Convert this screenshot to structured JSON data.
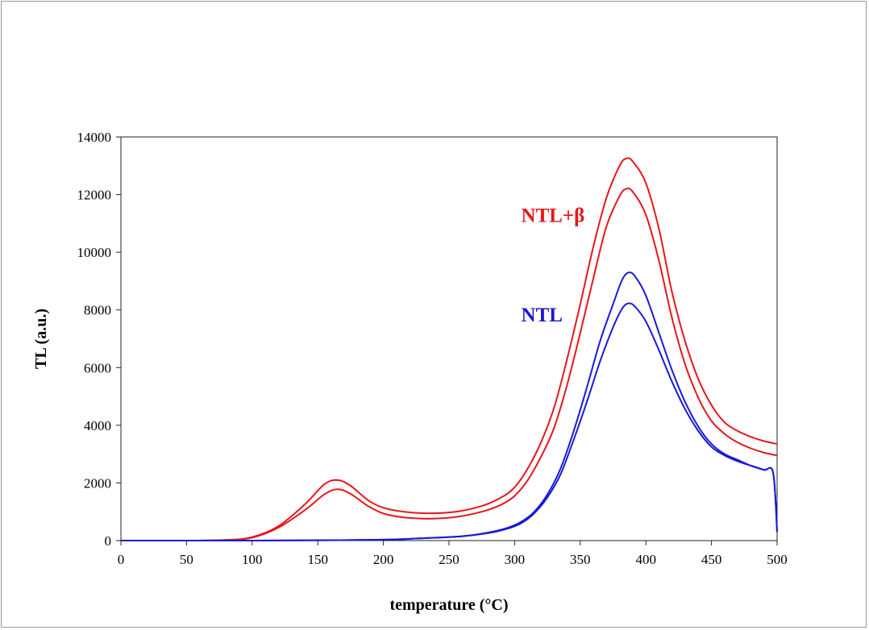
{
  "chart_data": {
    "type": "line",
    "xlabel": "temperature (°C)",
    "ylabel": "TL (a.u.)",
    "xlim": [
      0,
      500
    ],
    "ylim": [
      0,
      14000
    ],
    "x_ticks": [
      "0",
      "50",
      "100",
      "150",
      "200",
      "250",
      "300",
      "350",
      "400",
      "450",
      "500"
    ],
    "y_ticks": [
      "0",
      "2000",
      "4000",
      "6000",
      "8000",
      "10000",
      "12000",
      "14000"
    ],
    "grid": false,
    "annotations": [
      {
        "text": "NTL+β",
        "color": "#e8161c",
        "x": 305,
        "y": 11050
      },
      {
        "text": "NTL",
        "color": "#1a1ad6",
        "x": 305,
        "y": 7600
      }
    ],
    "series": [
      {
        "color": "#e8161c",
        "points": [
          [
            0,
            0
          ],
          [
            50,
            0
          ],
          [
            80,
            20
          ],
          [
            100,
            120
          ],
          [
            120,
            500
          ],
          [
            140,
            1250
          ],
          [
            155,
            1950
          ],
          [
            165,
            2100
          ],
          [
            175,
            1900
          ],
          [
            190,
            1350
          ],
          [
            205,
            1080
          ],
          [
            230,
            950
          ],
          [
            255,
            1000
          ],
          [
            275,
            1200
          ],
          [
            290,
            1500
          ],
          [
            300,
            1850
          ],
          [
            310,
            2500
          ],
          [
            320,
            3400
          ],
          [
            330,
            4600
          ],
          [
            340,
            6300
          ],
          [
            350,
            8200
          ],
          [
            360,
            10200
          ],
          [
            370,
            11900
          ],
          [
            380,
            13000
          ],
          [
            385,
            13250
          ],
          [
            390,
            13150
          ],
          [
            400,
            12400
          ],
          [
            410,
            10800
          ],
          [
            420,
            8600
          ],
          [
            430,
            6900
          ],
          [
            440,
            5600
          ],
          [
            450,
            4700
          ],
          [
            460,
            4100
          ],
          [
            470,
            3800
          ],
          [
            480,
            3600
          ],
          [
            490,
            3450
          ],
          [
            500,
            3350
          ]
        ]
      },
      {
        "color": "#e8161c",
        "points": [
          [
            0,
            0
          ],
          [
            50,
            0
          ],
          [
            80,
            20
          ],
          [
            100,
            100
          ],
          [
            120,
            450
          ],
          [
            140,
            1050
          ],
          [
            155,
            1600
          ],
          [
            165,
            1780
          ],
          [
            175,
            1620
          ],
          [
            190,
            1150
          ],
          [
            205,
            880
          ],
          [
            230,
            760
          ],
          [
            255,
            820
          ],
          [
            275,
            1000
          ],
          [
            290,
            1250
          ],
          [
            300,
            1550
          ],
          [
            310,
            2100
          ],
          [
            320,
            2900
          ],
          [
            330,
            3900
          ],
          [
            340,
            5400
          ],
          [
            350,
            7200
          ],
          [
            360,
            9100
          ],
          [
            370,
            10900
          ],
          [
            380,
            11950
          ],
          [
            385,
            12200
          ],
          [
            390,
            12100
          ],
          [
            400,
            11300
          ],
          [
            410,
            9700
          ],
          [
            420,
            7700
          ],
          [
            430,
            6100
          ],
          [
            440,
            4950
          ],
          [
            450,
            4150
          ],
          [
            460,
            3700
          ],
          [
            470,
            3400
          ],
          [
            480,
            3200
          ],
          [
            490,
            3050
          ],
          [
            500,
            2950
          ]
        ]
      },
      {
        "color": "#1a1ad6",
        "points": [
          [
            0,
            0
          ],
          [
            100,
            0
          ],
          [
            150,
            10
          ],
          [
            200,
            30
          ],
          [
            230,
            80
          ],
          [
            260,
            150
          ],
          [
            280,
            280
          ],
          [
            295,
            450
          ],
          [
            305,
            650
          ],
          [
            315,
            1000
          ],
          [
            325,
            1600
          ],
          [
            335,
            2500
          ],
          [
            345,
            3800
          ],
          [
            355,
            5300
          ],
          [
            365,
            6900
          ],
          [
            375,
            8200
          ],
          [
            382,
            9050
          ],
          [
            387,
            9300
          ],
          [
            392,
            9150
          ],
          [
            400,
            8500
          ],
          [
            410,
            7200
          ],
          [
            420,
            5900
          ],
          [
            430,
            4800
          ],
          [
            440,
            3950
          ],
          [
            450,
            3350
          ],
          [
            460,
            3000
          ],
          [
            470,
            2800
          ],
          [
            480,
            2600
          ],
          [
            490,
            2450
          ],
          [
            497,
            2350
          ],
          [
            500,
            300
          ]
        ]
      },
      {
        "color": "#1a1ad6",
        "points": [
          [
            0,
            0
          ],
          [
            100,
            0
          ],
          [
            150,
            10
          ],
          [
            200,
            30
          ],
          [
            230,
            80
          ],
          [
            260,
            150
          ],
          [
            280,
            260
          ],
          [
            295,
            420
          ],
          [
            305,
            600
          ],
          [
            315,
            950
          ],
          [
            325,
            1500
          ],
          [
            335,
            2300
          ],
          [
            345,
            3500
          ],
          [
            355,
            4800
          ],
          [
            365,
            6200
          ],
          [
            375,
            7400
          ],
          [
            382,
            8050
          ],
          [
            387,
            8230
          ],
          [
            392,
            8100
          ],
          [
            400,
            7600
          ],
          [
            410,
            6600
          ],
          [
            420,
            5500
          ],
          [
            430,
            4550
          ],
          [
            440,
            3800
          ],
          [
            450,
            3250
          ],
          [
            460,
            2950
          ],
          [
            470,
            2750
          ],
          [
            480,
            2600
          ],
          [
            490,
            2450
          ],
          [
            497,
            2350
          ],
          [
            500,
            300
          ]
        ]
      }
    ]
  }
}
